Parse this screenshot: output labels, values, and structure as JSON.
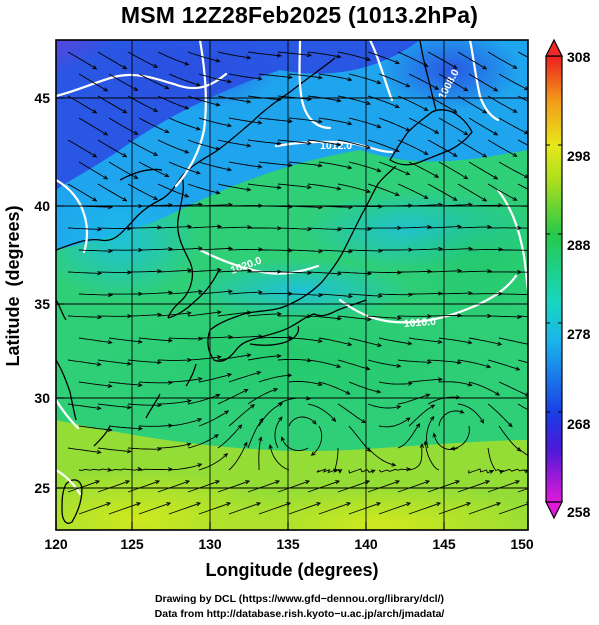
{
  "title": "MSM 12Z28Feb2025 (1013.2hPa)",
  "xaxis": {
    "label": "Longitude (degrees)",
    "range": [
      120,
      150
    ],
    "ticks": [
      "120",
      "125",
      "130",
      "135",
      "140",
      "145",
      "150"
    ]
  },
  "yaxis": {
    "label": "Latitude  (degrees)",
    "range": [
      22.5,
      47.6
    ],
    "ticks": [
      "25",
      "30",
      "35",
      "40",
      "45"
    ]
  },
  "colorbar": {
    "range": [
      258,
      308
    ],
    "ticks": [
      "258",
      "268",
      "278",
      "288",
      "298",
      "308"
    ]
  },
  "contours": {
    "labels": [
      "1012.0",
      "1008.0",
      "1016.0",
      "1020.0"
    ]
  },
  "credits": {
    "line1": "Drawing by DCL (https://www.gfd−dennou.org/library/dcl/)",
    "line2": "Data from http://database.rish.kyoto−u.ac.jp/arch/jmadata/"
  },
  "colors": {
    "cold": "#2a55e6",
    "cool": "#18c8e8",
    "mild": "#2ed06a",
    "warm": "#c8e61e",
    "hot": "#ee4a1a",
    "extreme_cold": "#d418c8",
    "grid": "#000000",
    "coast": "#000000",
    "isobar": "#ffffff"
  },
  "icons": [
    "arrow-up-triangle-icon",
    "arrow-down-triangle-icon"
  ]
}
